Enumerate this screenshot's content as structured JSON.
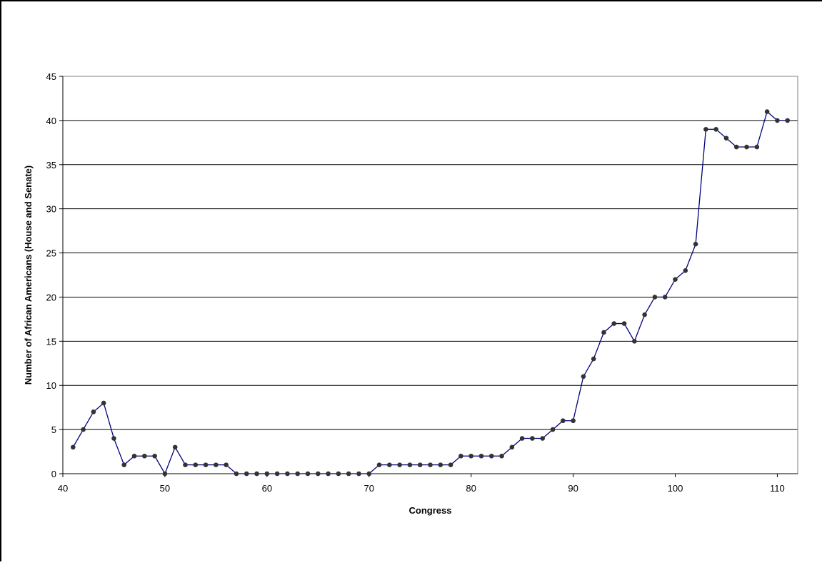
{
  "chart_data": {
    "type": "line",
    "xlabel": "Congress",
    "ylabel": "Number of African Americans (House and Senate)",
    "xlim": [
      40,
      112
    ],
    "ylim": [
      0,
      45
    ],
    "x_ticks": [
      40,
      50,
      60,
      70,
      80,
      90,
      100,
      110
    ],
    "y_ticks": [
      0,
      5,
      10,
      15,
      20,
      25,
      30,
      35,
      40,
      45
    ],
    "grid": "horizontal",
    "line_color": "#00007f",
    "marker_color": "#333333",
    "series": [
      {
        "x": [
          41,
          42,
          43,
          44,
          45,
          46,
          47,
          48,
          49,
          50,
          51,
          52,
          53,
          54,
          55,
          56,
          57,
          58,
          59,
          60,
          61,
          62,
          63,
          64,
          65,
          66,
          67,
          68,
          69,
          70,
          71,
          72,
          73,
          74,
          75,
          76,
          77,
          78,
          79,
          80,
          81,
          82,
          83,
          84,
          85,
          86,
          87,
          88,
          89,
          90,
          91,
          92,
          93,
          94,
          95,
          96,
          97,
          98,
          99,
          100,
          101,
          102,
          103,
          104,
          105,
          106,
          107,
          108,
          109,
          110,
          111
        ],
        "values": [
          3,
          5,
          7,
          8,
          4,
          1,
          2,
          2,
          2,
          0,
          3,
          1,
          1,
          1,
          1,
          1,
          0,
          0,
          0,
          0,
          0,
          0,
          0,
          0,
          0,
          0,
          0,
          0,
          0,
          0,
          1,
          1,
          1,
          1,
          1,
          1,
          1,
          1,
          2,
          2,
          2,
          2,
          2,
          3,
          4,
          4,
          4,
          5,
          6,
          6,
          11,
          13,
          16,
          17,
          17,
          15,
          18,
          20,
          20,
          22,
          23,
          26,
          39,
          39,
          38,
          37,
          37,
          37,
          41,
          40,
          40
        ]
      }
    ]
  }
}
